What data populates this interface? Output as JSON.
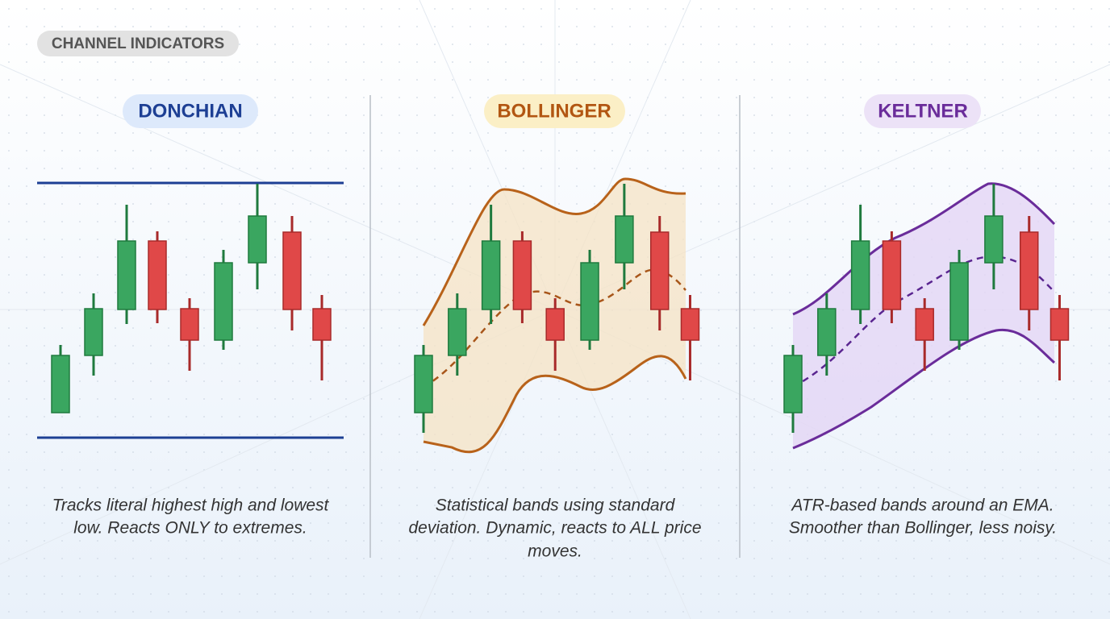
{
  "header": {
    "tag": "CHANNEL INDICATORS"
  },
  "panels": [
    {
      "title": "DONCHIAN",
      "description": [
        "Tracks literal highest high and lowest",
        "low. Reacts ONLY to extremes."
      ]
    },
    {
      "title": "BOLLINGER",
      "description": [
        "Statistical bands using standard",
        "deviation. Dynamic, reacts to ALL price",
        "moves."
      ]
    },
    {
      "title": "KELTNER",
      "description": [
        "ATR-based bands around an EMA.",
        "Smoother than Bollinger, less noisy."
      ]
    }
  ]
}
